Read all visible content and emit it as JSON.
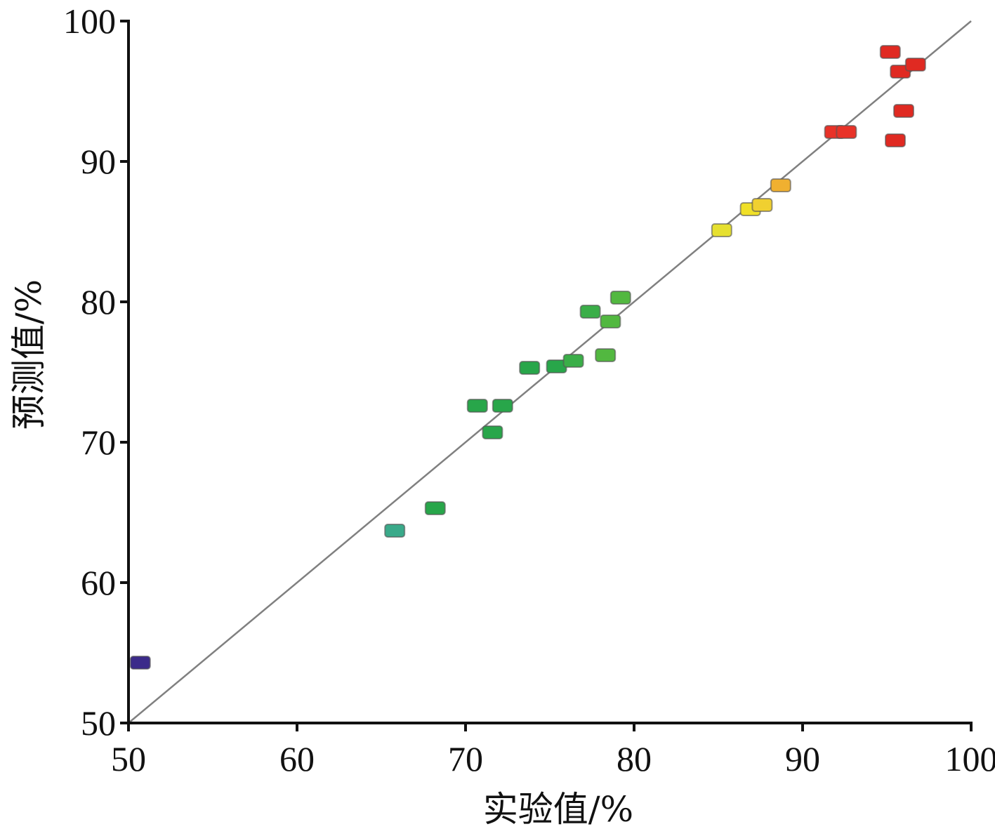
{
  "chart_data": {
    "type": "scatter",
    "xlabel": "实验值/%",
    "ylabel": "预测值/%",
    "xlim": [
      50,
      100
    ],
    "ylim": [
      50,
      100
    ],
    "x_ticks": [
      "50",
      "60",
      "70",
      "80",
      "90",
      "100"
    ],
    "y_ticks": [
      "50",
      "60",
      "70",
      "80",
      "90",
      "100"
    ],
    "grid": false,
    "legend": "none",
    "reference_line": {
      "from": [
        50,
        50
      ],
      "to": [
        100,
        100
      ],
      "color": "#808080"
    },
    "points": [
      {
        "x": 50.7,
        "y": 54.3,
        "color": "#3b2a8a"
      },
      {
        "x": 65.8,
        "y": 63.7,
        "color": "#3aaa8a"
      },
      {
        "x": 68.2,
        "y": 65.3,
        "color": "#28a64a"
      },
      {
        "x": 70.7,
        "y": 72.6,
        "color": "#28a64a"
      },
      {
        "x": 72.2,
        "y": 72.6,
        "color": "#28a64a"
      },
      {
        "x": 71.6,
        "y": 70.7,
        "color": "#28a64a"
      },
      {
        "x": 73.8,
        "y": 75.3,
        "color": "#28a64a"
      },
      {
        "x": 75.4,
        "y": 75.4,
        "color": "#28a64a"
      },
      {
        "x": 76.4,
        "y": 75.8,
        "color": "#3aae48"
      },
      {
        "x": 77.4,
        "y": 79.3,
        "color": "#3aae48"
      },
      {
        "x": 78.6,
        "y": 78.6,
        "color": "#52b840"
      },
      {
        "x": 79.2,
        "y": 80.3,
        "color": "#52b840"
      },
      {
        "x": 78.3,
        "y": 76.2,
        "color": "#52b840"
      },
      {
        "x": 85.2,
        "y": 85.1,
        "color": "#e6e030"
      },
      {
        "x": 86.9,
        "y": 86.6,
        "color": "#f0e028"
      },
      {
        "x": 87.6,
        "y": 86.9,
        "color": "#f0d030"
      },
      {
        "x": 88.7,
        "y": 88.3,
        "color": "#f0b030"
      },
      {
        "x": 91.9,
        "y": 92.1,
        "color": "#e83228"
      },
      {
        "x": 92.6,
        "y": 92.1,
        "color": "#e83228"
      },
      {
        "x": 95.2,
        "y": 97.8,
        "color": "#e02a22"
      },
      {
        "x": 95.8,
        "y": 96.4,
        "color": "#e02a22"
      },
      {
        "x": 96.7,
        "y": 96.9,
        "color": "#e02a22"
      },
      {
        "x": 96.0,
        "y": 93.6,
        "color": "#e02a22"
      },
      {
        "x": 95.5,
        "y": 91.5,
        "color": "#e02a22"
      }
    ]
  }
}
